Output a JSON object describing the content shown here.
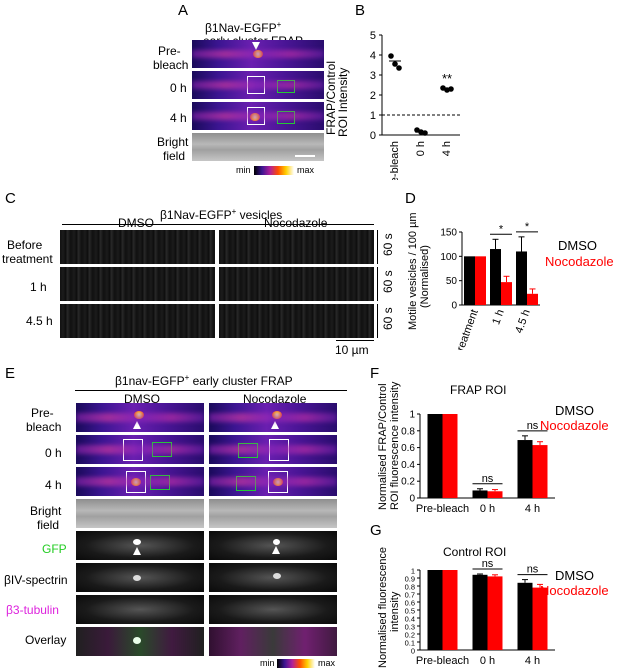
{
  "panels": {
    "A": {
      "letter": "A",
      "title_line1": "β1Nav-EGFP",
      "title_sup": "+",
      "title_line2": "early cluster FRAP",
      "rows": [
        "Pre-",
        "bleach",
        "0 h",
        "4 h",
        "Bright",
        "field"
      ],
      "scale_min": "min",
      "scale_max": "max"
    },
    "B": {
      "letter": "B",
      "ylabel_1": "FRAP/Control",
      "ylabel_2": "ROI Intensity",
      "yticks": [
        "0",
        "1",
        "2",
        "3",
        "4",
        "5"
      ],
      "xticks": [
        "Pre-bleach",
        "0 h",
        "4 h"
      ],
      "significance": "**"
    },
    "C": {
      "letter": "C",
      "title": "β1Nav-EGFP",
      "title_sup": "+",
      "title_tail": " vesicles",
      "cols": [
        "DMSO",
        "Nocodazole"
      ],
      "rows": [
        "Before",
        "treatment",
        "1 h",
        "4.5 h"
      ],
      "time_label": "60 s",
      "scale_label": "10 µm"
    },
    "D": {
      "letter": "D",
      "ylabel_1": "Motile vesicles / 100 µm",
      "ylabel_2": "(Normalised)",
      "yticks": [
        "0",
        "50",
        "100",
        "150"
      ],
      "xticks": [
        "Before treatment",
        "1 h",
        "4.5 h"
      ],
      "legend_dmso": "DMSO",
      "legend_noco": "Nocodazole",
      "star": "*"
    },
    "E": {
      "letter": "E",
      "title": "β1nav-EGFP",
      "title_sup": "+",
      "title_tail": " early cluster FRAP",
      "cols": [
        "DMSO",
        "Nocodazole"
      ],
      "rows": [
        "Pre-",
        "bleach",
        "0 h",
        "4 h",
        "Bright",
        "field",
        "GFP",
        "βIV-spectrin",
        "β3-tubulin",
        "Overlay"
      ],
      "scale_min": "min",
      "scale_max": "max"
    },
    "F": {
      "letter": "F",
      "title": "FRAP ROI",
      "ylabel_1": "Normalised FRAP/Control",
      "ylabel_2": "ROI fluorescence intensity",
      "yticks": [
        "0",
        "0.2",
        "0.4",
        "0.6",
        "0.8",
        "1"
      ],
      "xticks": [
        "Pre-bleach",
        "0 h",
        "4 h"
      ],
      "legend_dmso": "DMSO",
      "legend_noco": "Nocodazole",
      "ns": "ns"
    },
    "G": {
      "letter": "G",
      "title": "Control ROI",
      "ylabel_1": "Normalised fluorescence",
      "ylabel_2": "intensity",
      "yticks": [
        "0",
        "0.1",
        "0.2",
        "0.3",
        "0.4",
        "0.5",
        "0.6",
        "0.7",
        "0.8",
        "0.9",
        "1"
      ],
      "xticks": [
        "Pre-bleach",
        "0 h",
        "4 h"
      ],
      "legend_dmso": "DMSO",
      "legend_noco": "Nocodazole",
      "ns": "ns"
    }
  },
  "colors": {
    "dmso": "#000000",
    "nocodazole": "#ff0000",
    "gfp": "#22cc22",
    "tubulin": "#dd22dd"
  },
  "chart_data": [
    {
      "id": "B",
      "type": "scatter",
      "categories": [
        "Pre-bleach",
        "0 h",
        "4 h"
      ],
      "points": [
        [
          3.95,
          3.55,
          3.35
        ],
        [
          0.25,
          0.15,
          0.1
        ],
        [
          2.35,
          2.25,
          2.3
        ]
      ],
      "means": [
        3.7,
        0.15,
        2.3
      ],
      "ylabel": "FRAP/Control ROI Intensity",
      "ylim": [
        0,
        5
      ],
      "reference_line": 1
    },
    {
      "id": "D",
      "type": "bar",
      "categories": [
        "Before treatment",
        "1 h",
        "4.5 h"
      ],
      "series": [
        {
          "name": "DMSO",
          "values": [
            100,
            115,
            110
          ],
          "errors": [
            0,
            20,
            30
          ]
        },
        {
          "name": "Nocodazole",
          "values": [
            100,
            47,
            23
          ],
          "errors": [
            0,
            12,
            10
          ]
        }
      ],
      "ylabel": "Motile vesicles / 100 µm (Normalised)",
      "ylim": [
        0,
        150
      ]
    },
    {
      "id": "F",
      "type": "bar",
      "title": "FRAP ROI",
      "categories": [
        "Pre-bleach",
        "0 h",
        "4 h"
      ],
      "series": [
        {
          "name": "DMSO",
          "values": [
            1.0,
            0.09,
            0.69
          ],
          "errors": [
            0,
            0.02,
            0.05
          ]
        },
        {
          "name": "Nocodazole",
          "values": [
            1.0,
            0.08,
            0.63
          ],
          "errors": [
            0,
            0.02,
            0.04
          ]
        }
      ],
      "ylabel": "Normalised FRAP/Control ROI fluorescence intensity",
      "ylim": [
        0,
        1
      ]
    },
    {
      "id": "G",
      "type": "bar",
      "title": "Control ROI",
      "categories": [
        "Pre-bleach",
        "0 h",
        "4 h"
      ],
      "series": [
        {
          "name": "DMSO",
          "values": [
            1.0,
            0.94,
            0.84
          ],
          "errors": [
            0,
            0.01,
            0.04
          ]
        },
        {
          "name": "Nocodazole",
          "values": [
            1.0,
            0.92,
            0.78
          ],
          "errors": [
            0,
            0.02,
            0.04
          ]
        }
      ],
      "ylabel": "Normalised fluorescence intensity",
      "ylim": [
        0,
        1
      ]
    }
  ]
}
